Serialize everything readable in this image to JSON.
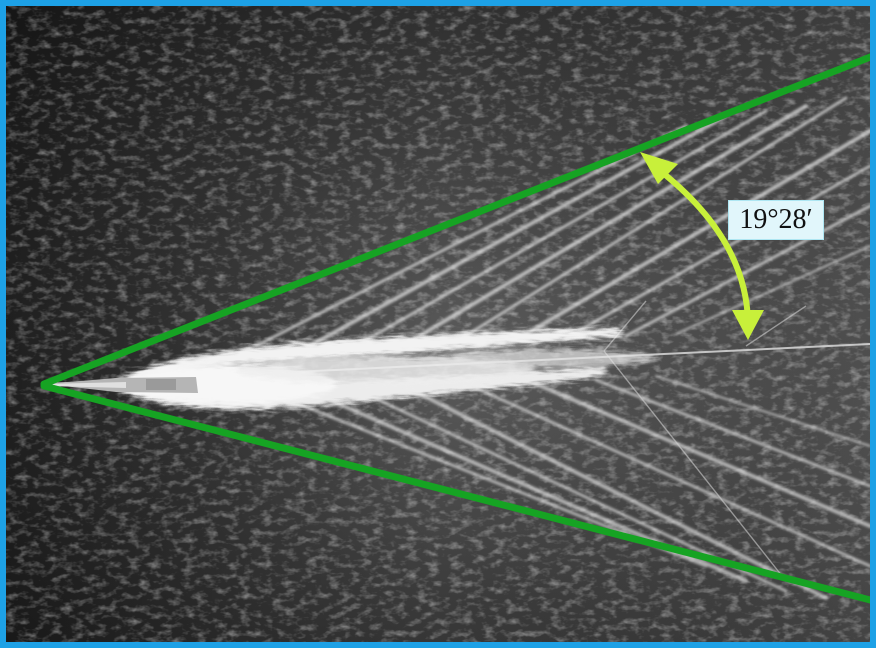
{
  "annotation": {
    "angle_label": "19°28′"
  },
  "colors": {
    "frame_border": "#1da1e6",
    "wake_lines": "#16a323",
    "angle_arrow": "#c8f03a",
    "label_background": "#e1f6fb"
  },
  "icons": {
    "angle_arrow": "double-headed-arc-arrow-icon"
  }
}
